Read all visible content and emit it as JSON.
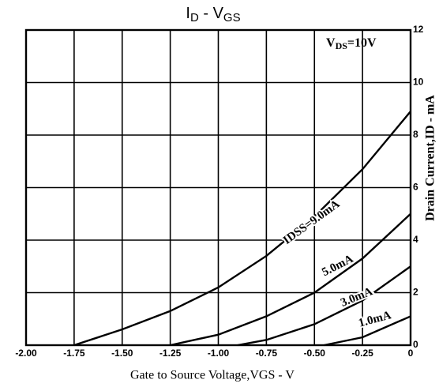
{
  "chart_data": {
    "type": "line",
    "title": [
      "I",
      "D",
      " - ",
      "V",
      "GS"
    ],
    "annotation": [
      "V",
      "DS",
      "=10V"
    ],
    "x_label": "Gate to Source Voltage,VGS - V",
    "y_label": "Drain Current,ID - mA",
    "xlim": [
      -2.0,
      0
    ],
    "ylim": [
      0,
      12
    ],
    "xticks": [
      {
        "value": -2.0,
        "label": "-2.00"
      },
      {
        "value": -1.75,
        "label": "-1.75"
      },
      {
        "value": -1.5,
        "label": "-1.50"
      },
      {
        "value": -1.25,
        "label": "-1.25"
      },
      {
        "value": -1.0,
        "label": "-1.00"
      },
      {
        "value": -0.75,
        "label": "-0.75"
      },
      {
        "value": -0.5,
        "label": "-0.50"
      },
      {
        "value": -0.25,
        "label": "-0.25"
      },
      0
    ],
    "yticks": [
      0,
      2,
      4,
      6,
      8,
      10,
      12
    ],
    "grid": true,
    "series": [
      {
        "name": "IDSS=9.0mA",
        "color": "#000000",
        "x": [
          -1.75,
          -1.5,
          -1.25,
          -1.0,
          -0.75,
          -0.5,
          -0.25,
          0
        ],
        "values": [
          0,
          0.6,
          1.3,
          2.2,
          3.4,
          4.9,
          6.7,
          8.9
        ]
      },
      {
        "name": "5.0mA",
        "color": "#000000",
        "x": [
          -1.25,
          -1.0,
          -0.75,
          -0.5,
          -0.25,
          0
        ],
        "values": [
          0,
          0.4,
          1.1,
          2.0,
          3.3,
          5.0
        ]
      },
      {
        "name": "3.0mA",
        "color": "#000000",
        "x": [
          -0.9,
          -0.75,
          -0.5,
          -0.25,
          0
        ],
        "values": [
          0,
          0.2,
          0.8,
          1.7,
          3.0
        ]
      },
      {
        "name": "1.0mA",
        "color": "#000000",
        "x": [
          -0.45,
          -0.25,
          0
        ],
        "values": [
          0,
          0.3,
          1.1
        ]
      }
    ]
  }
}
